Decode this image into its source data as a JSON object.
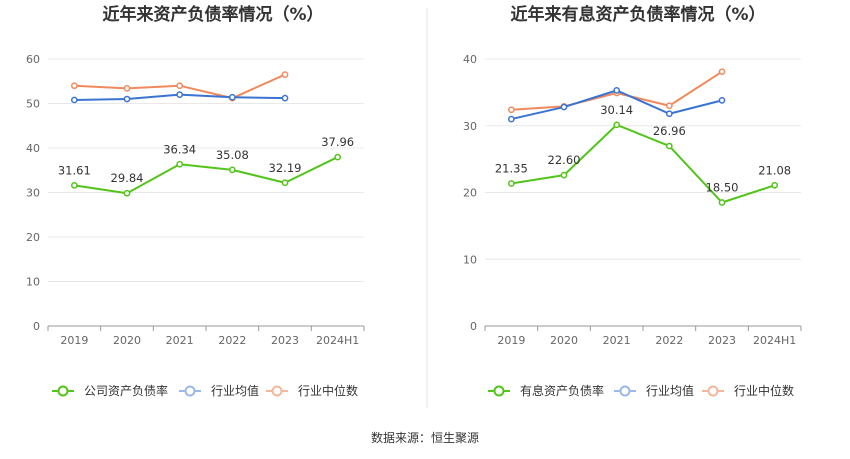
{
  "source": "数据来源：恒生聚源",
  "chart_data": [
    {
      "type": "line",
      "title": "近年来资产负债率情况（%）",
      "categories": [
        "2019",
        "2020",
        "2021",
        "2022",
        "2023",
        "2024H1"
      ],
      "ylim": [
        0,
        60
      ],
      "yticks": [
        0,
        10,
        20,
        30,
        40,
        50,
        60
      ],
      "grid": true,
      "legend_position": "bottom",
      "series": [
        {
          "name": "公司资产负债率",
          "color": "#52c41a",
          "values": [
            31.61,
            29.84,
            36.34,
            35.08,
            32.19,
            37.96
          ],
          "labels": [
            "31.61",
            "29.84",
            "36.34",
            "35.08",
            "32.19",
            "37.96"
          ]
        },
        {
          "name": "行业均值",
          "color": "#3b73d3",
          "values": [
            50.8,
            51.0,
            52.0,
            51.4,
            51.2,
            null
          ]
        },
        {
          "name": "行业中位数",
          "color": "#f08a5d",
          "values": [
            54.0,
            53.4,
            54.0,
            51.2,
            56.5,
            null
          ]
        }
      ]
    },
    {
      "type": "line",
      "title": "近年来有息资产负债率情况（%）",
      "categories": [
        "2019",
        "2020",
        "2021",
        "2022",
        "2023",
        "2024H1"
      ],
      "ylim": [
        0,
        40
      ],
      "yticks": [
        0,
        10,
        20,
        30,
        40
      ],
      "grid": true,
      "legend_position": "bottom",
      "series": [
        {
          "name": "有息资产负债率",
          "color": "#52c41a",
          "values": [
            21.35,
            22.6,
            30.14,
            26.96,
            18.5,
            21.08
          ],
          "labels": [
            "21.35",
            "22.60",
            "30.14",
            "26.96",
            "18.50",
            "21.08"
          ]
        },
        {
          "name": "行业均值",
          "color": "#3b73d3",
          "values": [
            31.0,
            32.8,
            35.3,
            31.8,
            33.8,
            null
          ]
        },
        {
          "name": "行业中位数",
          "color": "#f08a5d",
          "values": [
            32.4,
            32.9,
            34.9,
            33.0,
            38.1,
            null
          ]
        }
      ]
    }
  ]
}
